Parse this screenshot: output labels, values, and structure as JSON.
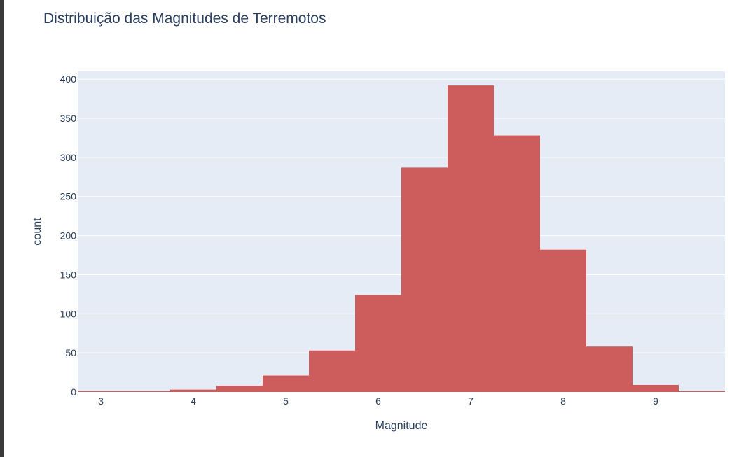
{
  "chart_data": {
    "type": "bar",
    "title": "Distribuição das Magnitudes de Terremotos",
    "xlabel": "Magnitude",
    "ylabel": "count",
    "x_ticks": [
      3,
      4,
      5,
      6,
      7,
      8,
      9
    ],
    "y_ticks": [
      0,
      50,
      100,
      150,
      200,
      250,
      300,
      350,
      400
    ],
    "xlim": [
      2.75,
      9.75
    ],
    "ylim": [
      0,
      410
    ],
    "bin_width": 0.5,
    "bins": [
      {
        "x0": 2.75,
        "x1": 3.25,
        "count": 1
      },
      {
        "x0": 3.25,
        "x1": 3.75,
        "count": 1
      },
      {
        "x0": 3.75,
        "x1": 4.25,
        "count": 3
      },
      {
        "x0": 4.25,
        "x1": 4.75,
        "count": 8
      },
      {
        "x0": 4.75,
        "x1": 5.25,
        "count": 21
      },
      {
        "x0": 5.25,
        "x1": 5.75,
        "count": 53
      },
      {
        "x0": 5.75,
        "x1": 6.25,
        "count": 124
      },
      {
        "x0": 6.25,
        "x1": 6.75,
        "count": 287
      },
      {
        "x0": 6.75,
        "x1": 7.25,
        "count": 392
      },
      {
        "x0": 7.25,
        "x1": 7.75,
        "count": 328
      },
      {
        "x0": 7.75,
        "x1": 8.25,
        "count": 182
      },
      {
        "x0": 8.25,
        "x1": 8.75,
        "count": 58
      },
      {
        "x0": 8.75,
        "x1": 9.25,
        "count": 9
      },
      {
        "x0": 9.25,
        "x1": 9.75,
        "count": 1
      }
    ],
    "grid": true,
    "colors": {
      "bar": "#cd5c5c",
      "plot_background": "#e5ecf6",
      "grid": "#ffffff",
      "text": "#2a3f5f"
    }
  }
}
